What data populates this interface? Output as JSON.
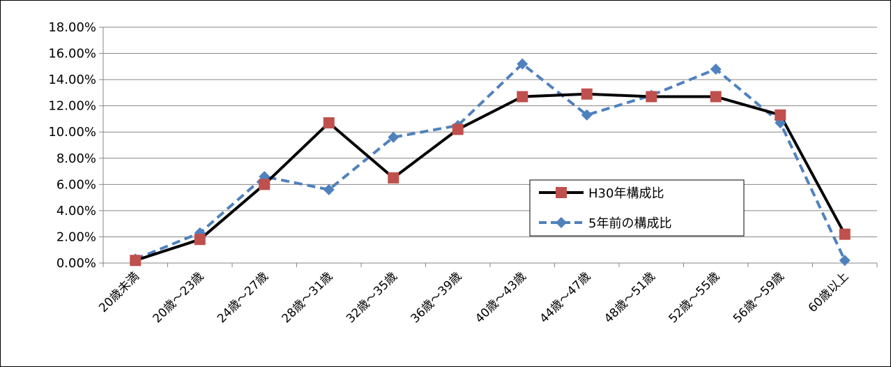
{
  "chart_data": {
    "type": "line",
    "categories": [
      "20歳未満",
      "20歳～23歳",
      "24歳～27歳",
      "28歳～31歳",
      "32歳～35歳",
      "36歳～39歳",
      "40歳～43歳",
      "44歳～47歳",
      "48歳～51歳",
      "52歳～55歳",
      "56歳～59歳",
      "60歳以上"
    ],
    "series": [
      {
        "name": "H30年構成比",
        "values": [
          0.2,
          1.8,
          6.0,
          10.7,
          6.5,
          10.2,
          12.7,
          12.9,
          12.7,
          12.7,
          11.3,
          2.2
        ],
        "color": "#000000",
        "marker_color": "#c0504d",
        "marker": "square",
        "line_style": "solid"
      },
      {
        "name": "5年前の構成比",
        "values": [
          0.3,
          2.3,
          6.6,
          5.6,
          9.6,
          10.5,
          15.2,
          11.3,
          12.8,
          14.8,
          10.7,
          0.2
        ],
        "color": "#4f81bd",
        "marker_color": "#4f81bd",
        "marker": "diamond",
        "line_style": "dashed"
      }
    ],
    "y_ticks": [
      "0.00%",
      "2.00%",
      "4.00%",
      "6.00%",
      "8.00%",
      "10.00%",
      "12.00%",
      "14.00%",
      "16.00%",
      "18.00%"
    ],
    "ylim": [
      0,
      18
    ],
    "y_unit": "percent",
    "grid": true,
    "legend_position": "right-middle"
  }
}
